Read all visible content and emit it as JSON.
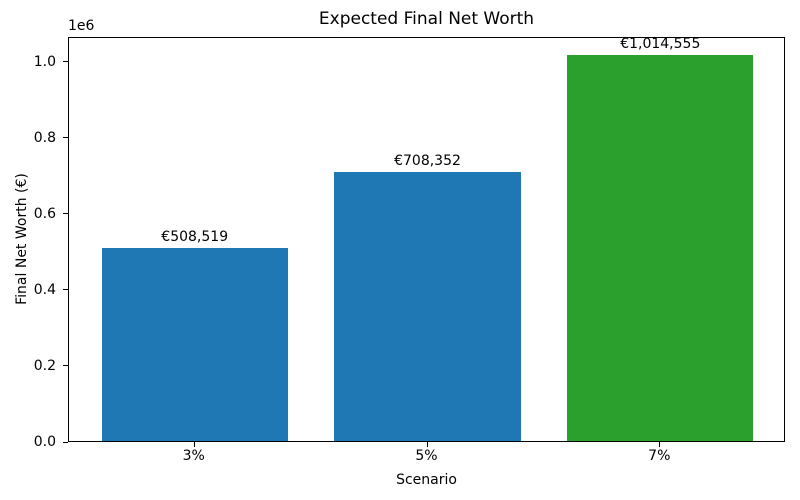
{
  "chart_data": {
    "type": "bar",
    "title": "Expected Final Net Worth",
    "xlabel": "Scenario",
    "ylabel": "Final Net Worth (€)",
    "categories": [
      "3%",
      "5%",
      "7%"
    ],
    "values": [
      508519,
      708352,
      1014555
    ],
    "bar_labels": [
      "€508,519",
      "€708,352",
      "€1,014,555"
    ],
    "bar_colors": [
      "#1f77b4",
      "#1f77b4",
      "#2ca02c"
    ],
    "ylim": [
      0,
      1065283
    ],
    "ytick_values": [
      0,
      200000,
      400000,
      600000,
      800000,
      1000000
    ],
    "ytick_labels": [
      "0.0",
      "0.2",
      "0.4",
      "0.6",
      "0.8",
      "1.0"
    ],
    "y_offset_text": "1e6",
    "legend": "none",
    "grid": false
  }
}
